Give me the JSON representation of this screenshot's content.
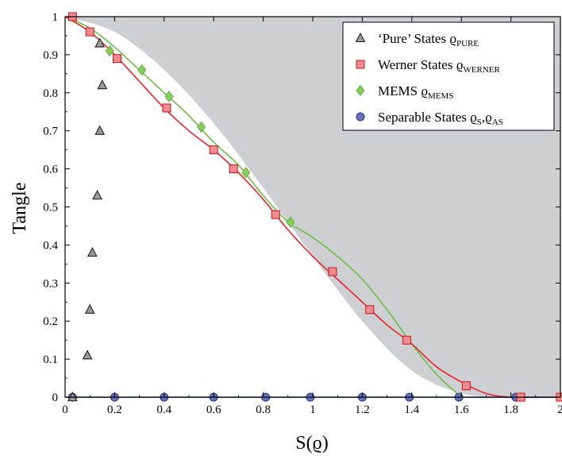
{
  "chart_data": {
    "type": "scatter",
    "xlabel": "S(ϱ)",
    "ylabel": "Tangle",
    "xlim": [
      0,
      2
    ],
    "ylim": [
      0,
      1
    ],
    "x_ticks": [
      0,
      0.2,
      0.4,
      0.6,
      0.8,
      1,
      1.2,
      1.4,
      1.6,
      1.8,
      2
    ],
    "x_tick_labels": [
      "0",
      "0.2",
      "0.4",
      "0.6",
      "0.8",
      "1",
      "1.2",
      "1.4",
      "1.6",
      "1.8",
      "2"
    ],
    "y_ticks": [
      0,
      0.1,
      0.2,
      0.3,
      0.4,
      0.5,
      0.6,
      0.7,
      0.8,
      0.9,
      1
    ],
    "y_tick_labels": [
      "0",
      "0.1",
      "0.2",
      "0.3",
      "0.4",
      "0.5",
      "0.6",
      "0.7",
      "0.8",
      "0.9",
      "1"
    ],
    "grid": false,
    "legend_position": "top-right",
    "colors": {
      "shade": "#cdcfd2",
      "werner": "#e8262a",
      "mems": "#6cbe45",
      "separable": "#3050b8",
      "pure_marker": "#9a9a9a",
      "werner_marker": "#f08a8f",
      "mems_marker": "#88cc5a",
      "separable_marker": "#6670c0"
    },
    "boundary_region": {
      "description_points_x": [
        0,
        0.2,
        0.4,
        0.6,
        0.8,
        1.0,
        1.2,
        1.4,
        1.6,
        1.8,
        2.0
      ],
      "description_points_y": [
        1,
        0.96,
        0.86,
        0.72,
        0.55,
        0.37,
        0.2,
        0.07,
        0.01,
        0,
        0
      ]
    },
    "series": [
      {
        "name": "‘Pure’ States ϱ",
        "subscript": "PURE",
        "marker": "triangle",
        "x": [
          0.03,
          0.09,
          0.1,
          0.11,
          0.13,
          0.14,
          0.15,
          0.14
        ],
        "y": [
          0.0,
          0.11,
          0.23,
          0.38,
          0.53,
          0.7,
          0.82,
          0.93
        ]
      },
      {
        "name": "Werner States ϱ",
        "subscript": "WERNER",
        "marker": "square",
        "x": [
          0.03,
          0.1,
          0.21,
          0.41,
          0.6,
          0.68,
          0.85,
          1.08,
          1.23,
          1.38,
          1.62,
          1.84,
          2.0
        ],
        "y": [
          1.0,
          0.96,
          0.89,
          0.76,
          0.65,
          0.6,
          0.48,
          0.33,
          0.23,
          0.15,
          0.03,
          0.0,
          0.0
        ]
      },
      {
        "name": "MEMS ϱ",
        "subscript": "MEMS",
        "marker": "diamond",
        "x": [
          0.18,
          0.31,
          0.42,
          0.55,
          0.73,
          0.91
        ],
        "y": [
          0.91,
          0.86,
          0.79,
          0.71,
          0.59,
          0.46
        ]
      },
      {
        "name": "Separable States ϱ",
        "subscript": "S",
        "subscript2": "AS",
        "marker": "circle",
        "x": [
          0.03,
          0.2,
          0.4,
          0.6,
          0.81,
          0.99,
          1.2,
          1.39,
          1.59,
          1.82,
          2.0
        ],
        "y": [
          0,
          0,
          0,
          0,
          0,
          0,
          0,
          0,
          0,
          0,
          0
        ]
      }
    ],
    "werner_curve_x": [
      0,
      0.1,
      0.2,
      0.3,
      0.4,
      0.5,
      0.6,
      0.7,
      0.8,
      0.9,
      1.0,
      1.1,
      1.2,
      1.3,
      1.4,
      1.5,
      1.6,
      1.7,
      1.8,
      1.9,
      2.0
    ],
    "werner_curve_y": [
      1.0,
      0.96,
      0.9,
      0.83,
      0.76,
      0.7,
      0.65,
      0.59,
      0.52,
      0.44,
      0.37,
      0.31,
      0.25,
      0.19,
      0.14,
      0.08,
      0.04,
      0.01,
      0.0,
      0.0,
      0.0
    ],
    "mems_curve_x": [
      0,
      0.1,
      0.2,
      0.3,
      0.4,
      0.5,
      0.6,
      0.7,
      0.8,
      0.9,
      0.95,
      1.0,
      1.1,
      1.2,
      1.3,
      1.4,
      1.5,
      1.6
    ],
    "mems_curve_y": [
      1.0,
      0.97,
      0.92,
      0.86,
      0.8,
      0.74,
      0.67,
      0.61,
      0.53,
      0.46,
      0.44,
      0.42,
      0.37,
      0.31,
      0.23,
      0.14,
      0.06,
      0.0
    ],
    "separable_line_y": 0
  }
}
